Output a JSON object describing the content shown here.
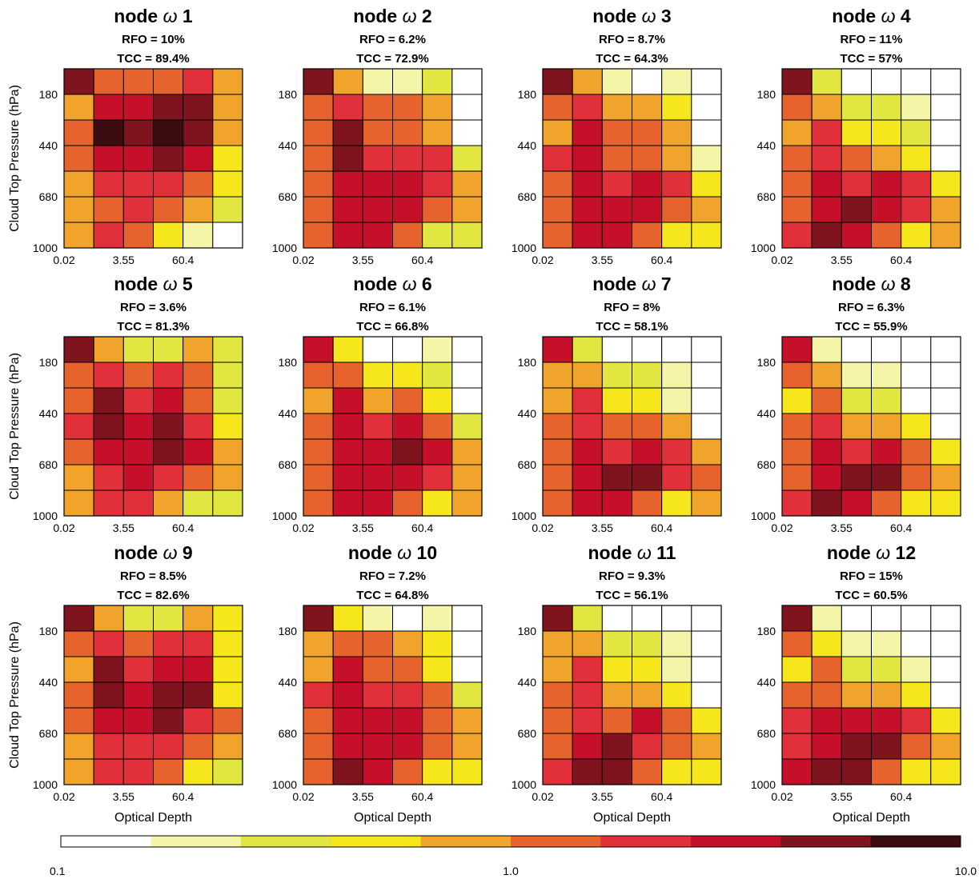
{
  "chart_data": {
    "type": "heatmap",
    "xlabel": "Optical Depth",
    "ylabel": "Cloud Top Pressure (hPa)",
    "x_ticks": [
      "0.02",
      "3.55",
      "60.4"
    ],
    "y_ticks": [
      "180",
      "440",
      "680",
      "1000"
    ],
    "colorbar": {
      "scale": "log",
      "range": [
        0.1,
        10.0
      ],
      "tick_labels": [
        "0.1",
        "1.0",
        "10.0"
      ],
      "colors": [
        "#ffffff",
        "#f5f5a8",
        "#e2e640",
        "#f6e61c",
        "#f1a42c",
        "#e6632e",
        "#e2303a",
        "#c6102a",
        "#7f141e",
        "#3b0d10"
      ]
    },
    "panels": [
      {
        "title_prefix": "node",
        "omega": "ω",
        "number": "1",
        "rfo": "RFO = 10%",
        "tcc": "TCC = 89.4%",
        "levels": [
          [
            8,
            5,
            5,
            5,
            6,
            4
          ],
          [
            4,
            7,
            7,
            8,
            8,
            4
          ],
          [
            5,
            9,
            8,
            9,
            8,
            4
          ],
          [
            5,
            7,
            7,
            8,
            7,
            3
          ],
          [
            4,
            6,
            6,
            6,
            5,
            3
          ],
          [
            4,
            5,
            6,
            5,
            4,
            2
          ],
          [
            4,
            6,
            5,
            3,
            1,
            0
          ]
        ]
      },
      {
        "title_prefix": "node",
        "omega": "ω",
        "number": "2",
        "rfo": "RFO = 6.2%",
        "tcc": "TCC = 72.9%",
        "levels": [
          [
            8,
            4,
            1,
            1,
            2,
            0
          ],
          [
            5,
            6,
            5,
            5,
            4,
            0
          ],
          [
            5,
            8,
            5,
            5,
            4,
            0
          ],
          [
            5,
            8,
            6,
            6,
            6,
            2
          ],
          [
            5,
            7,
            7,
            7,
            6,
            4
          ],
          [
            5,
            7,
            7,
            7,
            5,
            4
          ],
          [
            5,
            7,
            7,
            5,
            2,
            2
          ]
        ]
      },
      {
        "title_prefix": "node",
        "omega": "ω",
        "number": "3",
        "rfo": "RFO = 8.7%",
        "tcc": "TCC = 64.3%",
        "levels": [
          [
            8,
            4,
            1,
            0,
            1,
            0
          ],
          [
            5,
            6,
            4,
            4,
            3,
            0
          ],
          [
            4,
            7,
            5,
            5,
            4,
            0
          ],
          [
            6,
            7,
            5,
            5,
            4,
            1
          ],
          [
            5,
            7,
            6,
            7,
            6,
            3
          ],
          [
            5,
            7,
            7,
            7,
            5,
            4
          ],
          [
            5,
            7,
            7,
            5,
            3,
            3
          ]
        ]
      },
      {
        "title_prefix": "node",
        "omega": "ω",
        "number": "4",
        "rfo": "RFO = 11%",
        "tcc": "TCC = 57%",
        "levels": [
          [
            8,
            2,
            0,
            0,
            0,
            0
          ],
          [
            5,
            4,
            2,
            2,
            1,
            0
          ],
          [
            4,
            6,
            3,
            3,
            2,
            0
          ],
          [
            5,
            6,
            5,
            4,
            3,
            0
          ],
          [
            5,
            7,
            6,
            7,
            6,
            3
          ],
          [
            5,
            7,
            8,
            7,
            6,
            4
          ],
          [
            6,
            8,
            7,
            5,
            3,
            4
          ]
        ]
      },
      {
        "title_prefix": "node",
        "omega": "ω",
        "number": "5",
        "rfo": "RFO = 3.6%",
        "tcc": "TCC = 81.3%",
        "levels": [
          [
            8,
            4,
            2,
            2,
            4,
            2
          ],
          [
            5,
            6,
            5,
            6,
            5,
            2
          ],
          [
            5,
            8,
            6,
            7,
            5,
            2
          ],
          [
            6,
            8,
            7,
            8,
            6,
            3
          ],
          [
            5,
            7,
            7,
            8,
            7,
            4
          ],
          [
            4,
            6,
            7,
            6,
            5,
            4
          ],
          [
            4,
            6,
            6,
            4,
            2,
            2
          ]
        ]
      },
      {
        "title_prefix": "node",
        "omega": "ω",
        "number": "6",
        "rfo": "RFO = 6.1%",
        "tcc": "TCC = 66.8%",
        "levels": [
          [
            7,
            3,
            0,
            0,
            1,
            0
          ],
          [
            5,
            5,
            3,
            3,
            2,
            0
          ],
          [
            4,
            7,
            4,
            5,
            3,
            0
          ],
          [
            5,
            7,
            6,
            7,
            5,
            2
          ],
          [
            5,
            7,
            7,
            8,
            7,
            4
          ],
          [
            5,
            7,
            7,
            7,
            6,
            4
          ],
          [
            5,
            7,
            7,
            5,
            3,
            4
          ]
        ]
      },
      {
        "title_prefix": "node",
        "omega": "ω",
        "number": "7",
        "rfo": "RFO = 8%",
        "tcc": "TCC = 58.1%",
        "levels": [
          [
            7,
            2,
            0,
            0,
            0,
            0
          ],
          [
            4,
            4,
            2,
            2,
            1,
            0
          ],
          [
            4,
            6,
            3,
            3,
            1,
            0
          ],
          [
            5,
            6,
            5,
            5,
            4,
            0
          ],
          [
            5,
            7,
            6,
            7,
            6,
            4
          ],
          [
            5,
            7,
            8,
            8,
            6,
            5
          ],
          [
            5,
            7,
            7,
            5,
            3,
            4
          ]
        ]
      },
      {
        "title_prefix": "node",
        "omega": "ω",
        "number": "8",
        "rfo": "RFO = 6.3%",
        "tcc": "TCC = 55.9%",
        "levels": [
          [
            7,
            1,
            0,
            0,
            0,
            0
          ],
          [
            5,
            4,
            1,
            1,
            0,
            0
          ],
          [
            3,
            5,
            2,
            2,
            0,
            0
          ],
          [
            5,
            6,
            4,
            4,
            3,
            0
          ],
          [
            5,
            7,
            6,
            7,
            5,
            3
          ],
          [
            5,
            7,
            8,
            8,
            5,
            4
          ],
          [
            6,
            8,
            7,
            5,
            3,
            3
          ]
        ]
      },
      {
        "title_prefix": "node",
        "omega": "ω",
        "number": "9",
        "rfo": "RFO = 8.5%",
        "tcc": "TCC = 82.6%",
        "levels": [
          [
            8,
            4,
            2,
            2,
            4,
            3
          ],
          [
            5,
            6,
            5,
            6,
            6,
            3
          ],
          [
            4,
            8,
            6,
            7,
            7,
            3
          ],
          [
            5,
            8,
            7,
            8,
            8,
            3
          ],
          [
            5,
            7,
            7,
            8,
            6,
            5
          ],
          [
            4,
            6,
            6,
            6,
            5,
            4
          ],
          [
            4,
            6,
            6,
            5,
            3,
            2
          ]
        ]
      },
      {
        "title_prefix": "node",
        "omega": "ω",
        "number": "10",
        "rfo": "RFO = 7.2%",
        "tcc": "TCC = 64.8%",
        "levels": [
          [
            8,
            3,
            1,
            0,
            1,
            0
          ],
          [
            4,
            5,
            5,
            4,
            3,
            0
          ],
          [
            4,
            7,
            5,
            5,
            3,
            0
          ],
          [
            6,
            7,
            6,
            6,
            5,
            2
          ],
          [
            5,
            7,
            7,
            7,
            5,
            4
          ],
          [
            5,
            7,
            7,
            7,
            5,
            4
          ],
          [
            5,
            8,
            7,
            5,
            3,
            3
          ]
        ]
      },
      {
        "title_prefix": "node",
        "omega": "ω",
        "number": "11",
        "rfo": "RFO = 9.3%",
        "tcc": "TCC = 56.1%",
        "levels": [
          [
            8,
            2,
            0,
            0,
            0,
            0
          ],
          [
            4,
            4,
            2,
            2,
            1,
            0
          ],
          [
            4,
            6,
            3,
            3,
            1,
            0
          ],
          [
            5,
            6,
            4,
            4,
            3,
            0
          ],
          [
            5,
            6,
            5,
            7,
            5,
            3
          ],
          [
            5,
            7,
            8,
            6,
            5,
            4
          ],
          [
            6,
            8,
            8,
            5,
            3,
            3
          ]
        ]
      },
      {
        "title_prefix": "node",
        "omega": "ω",
        "number": "12",
        "rfo": "RFO = 15%",
        "tcc": "TCC = 60.5%",
        "levels": [
          [
            8,
            1,
            0,
            0,
            0,
            0
          ],
          [
            5,
            3,
            1,
            1,
            0,
            0
          ],
          [
            3,
            5,
            2,
            2,
            1,
            0
          ],
          [
            5,
            5,
            4,
            4,
            3,
            0
          ],
          [
            6,
            7,
            7,
            7,
            6,
            3
          ],
          [
            6,
            7,
            8,
            8,
            5,
            4
          ],
          [
            7,
            8,
            8,
            5,
            3,
            3
          ]
        ]
      }
    ]
  }
}
